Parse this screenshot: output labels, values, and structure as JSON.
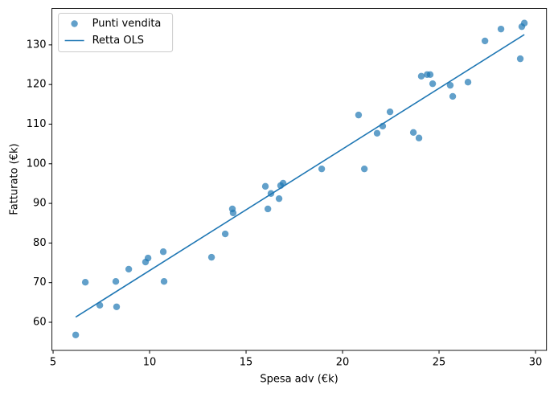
{
  "chart_data": {
    "type": "scatter",
    "xlabel": "Spesa adv (€k)",
    "ylabel": "Fatturato (€k)",
    "xlim": [
      4.94,
      30.57
    ],
    "ylim": [
      52.9,
      139.2
    ],
    "xticks": [
      5,
      10,
      15,
      20,
      25,
      30
    ],
    "yticks": [
      60,
      70,
      80,
      90,
      100,
      110,
      120,
      130
    ],
    "grid": false,
    "legend": "upper left",
    "series": [
      {
        "name": "Punti vendita",
        "type": "scatter",
        "color": "#1f77b4",
        "x": [
          6.17,
          6.67,
          7.42,
          8.25,
          8.29,
          8.92,
          9.79,
          9.92,
          10.71,
          10.75,
          13.21,
          13.92,
          14.29,
          14.33,
          16.0,
          16.13,
          16.29,
          16.71,
          16.79,
          16.92,
          18.92,
          20.83,
          21.13,
          21.79,
          22.08,
          22.46,
          23.67,
          23.96,
          24.08,
          24.38,
          24.54,
          24.67,
          25.58,
          25.71,
          26.5,
          27.38,
          28.21,
          29.21,
          29.29,
          29.42
        ],
        "values": [
          56.8,
          70.1,
          64.3,
          70.3,
          63.9,
          73.4,
          75.2,
          76.2,
          77.8,
          70.3,
          76.4,
          82.3,
          88.6,
          87.6,
          94.3,
          88.6,
          92.5,
          91.2,
          94.5,
          95.1,
          98.7,
          112.3,
          98.7,
          107.7,
          109.5,
          113.1,
          107.9,
          106.5,
          122.1,
          122.5,
          122.5,
          120.2,
          119.8,
          117.0,
          120.6,
          131.0,
          134.0,
          126.5,
          134.6,
          135.5
        ]
      },
      {
        "name": "Retta OLS",
        "type": "line",
        "color": "#1f77b4",
        "x": [
          6.17,
          29.42
        ],
        "values": [
          61.3,
          132.6
        ]
      }
    ]
  }
}
